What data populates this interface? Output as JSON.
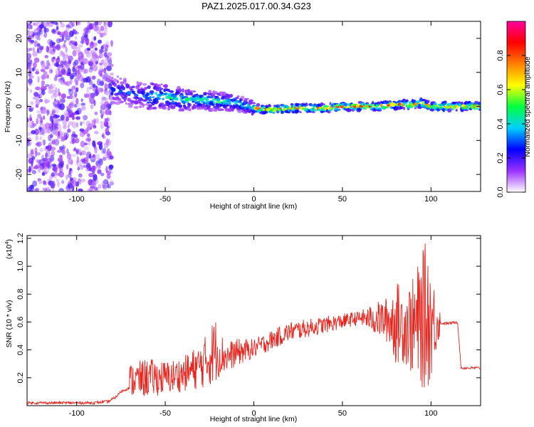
{
  "title": "PAZ1.2025.017.00.34.G23",
  "chart_data": [
    {
      "type": "heatmap",
      "xlabel": "Height of straight line (km)",
      "ylabel": "Frequency (Hz)",
      "xlim": [
        -128,
        128
      ],
      "ylim": [
        -25,
        25
      ],
      "xticks": [
        -100,
        -50,
        0,
        50,
        100
      ],
      "yticks": [
        -20,
        -10,
        0,
        10,
        20
      ],
      "colorbar": {
        "label": "Normalized spectral amplitude",
        "range": [
          0,
          1
        ],
        "ticks": [
          "0.0",
          "0.2",
          "0.4",
          "0.6",
          "0.8"
        ],
        "tick_values": [
          0,
          0.2,
          0.4,
          0.6,
          0.8
        ],
        "colormap": [
          "#ffffff",
          "#9b30ff",
          "#0000ff",
          "#00d0ff",
          "#00ff40",
          "#ffff00",
          "#ff8000",
          "#ff0000",
          "#ff00a0"
        ]
      },
      "ridge": {
        "x": [
          -80,
          -70,
          -60,
          -50,
          -40,
          -30,
          -20,
          -10,
          0,
          10,
          20,
          30,
          40,
          50,
          60,
          70,
          80,
          90,
          95,
          100,
          110,
          120,
          128
        ],
        "y": [
          5,
          4,
          3,
          3,
          2,
          2,
          1.5,
          1,
          -0.5,
          -1,
          -0.5,
          -0.5,
          -0.5,
          0,
          0,
          0,
          0.5,
          0.5,
          1,
          0,
          0,
          0,
          0
        ]
      },
      "noise_region_x": [
        -128,
        -80
      ]
    },
    {
      "type": "line",
      "xlabel": "Height of straight line (km)",
      "ylabel": "SNR (10 * v/v)",
      "multiplier_label": "(x10",
      "multiplier_exp": "4",
      "multiplier_close": ")",
      "xlim": [
        -128,
        128
      ],
      "ylim": [
        0,
        1.22
      ],
      "xticks": [
        -100,
        -50,
        0,
        50,
        100
      ],
      "yticks": [
        "0.2",
        "0.4",
        "0.6",
        "0.8",
        "1.0",
        "1.2"
      ],
      "ytick_values": [
        0.2,
        0.4,
        0.6,
        0.8,
        1.0,
        1.2
      ],
      "line_color": "#e8251e",
      "series": [
        {
          "x": [
            -128,
            -90,
            -82,
            -78,
            -75,
            -70,
            -65,
            -60,
            -55,
            -50,
            -45,
            -40,
            -35,
            -30,
            -25,
            -22,
            -20,
            -15,
            -10,
            -5,
            0,
            10,
            20,
            30,
            40,
            50,
            60,
            70,
            80,
            90,
            95,
            98,
            100,
            105,
            110,
            115,
            117,
            120,
            128
          ],
          "y": [
            0.02,
            0.02,
            0.03,
            0.06,
            0.1,
            0.13,
            0.16,
            0.17,
            0.17,
            0.15,
            0.18,
            0.2,
            0.22,
            0.26,
            0.32,
            0.36,
            0.36,
            0.34,
            0.36,
            0.38,
            0.42,
            0.48,
            0.54,
            0.58,
            0.61,
            0.62,
            0.62,
            0.62,
            0.63,
            0.6,
            0.55,
            0.6,
            0.62,
            0.59,
            0.59,
            0.6,
            0.27,
            0.27,
            0.27
          ],
          "envelope": {
            "x": [
              -70,
              -60,
              -50,
              -40,
              -30,
              -25,
              -22,
              -20,
              -15,
              -10,
              0,
              20,
              60,
              75,
              80,
              85,
              90,
              95,
              98,
              100,
              105
            ],
            "lo": [
              0.06,
              0.06,
              0.08,
              0.1,
              0.12,
              0.14,
              0.15,
              0.2,
              0.24,
              0.28,
              0.34,
              0.46,
              0.58,
              0.45,
              0.3,
              0.3,
              0.2,
              0.12,
              0.1,
              0.2,
              0.5
            ],
            "hi": [
              0.3,
              0.34,
              0.32,
              0.35,
              0.45,
              0.55,
              0.66,
              0.55,
              0.46,
              0.48,
              0.48,
              0.6,
              0.68,
              0.78,
              0.9,
              0.85,
              0.92,
              1.1,
              1.22,
              1.0,
              0.7
            ]
          }
        }
      ]
    }
  ]
}
